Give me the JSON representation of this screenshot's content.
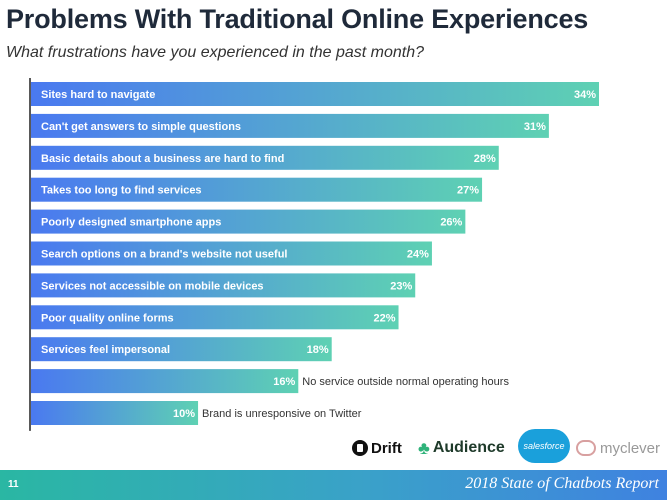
{
  "header": {
    "title": "Problems With Traditional Online Experiences",
    "subtitle": "What frustrations have you experienced in the past month?"
  },
  "colors": {
    "bar_start": "#4a79f0",
    "bar_end": "#5ed1b3",
    "label_inside": "#ffffff",
    "label_outside": "#333333",
    "axis": "#222222"
  },
  "chart_data": {
    "type": "bar",
    "orientation": "horizontal",
    "title": "Problems With Traditional Online Experiences",
    "subtitle": "What frustrations have you experienced in the past month?",
    "xlabel": "",
    "ylabel": "",
    "value_suffix": "%",
    "xlim": [
      0,
      35
    ],
    "grid": false,
    "legend": "none",
    "categories": [
      "Sites hard to navigate",
      "Can't get answers to simple questions",
      "Basic details about a business are hard to find",
      "Takes too long to find services",
      "Poorly designed smartphone apps",
      "Search options on a brand's website not useful",
      "Services not accessible on mobile devices",
      "Poor quality online forms",
      "Services feel impersonal",
      "No service outside normal operating hours",
      "Brand is unresponsive on Twitter"
    ],
    "values": [
      34,
      31,
      28,
      27,
      26,
      24,
      23,
      22,
      18,
      16,
      10
    ],
    "label_position": [
      "inside",
      "inside",
      "inside",
      "inside",
      "inside",
      "inside",
      "inside",
      "inside",
      "inside",
      "outside",
      "outside"
    ]
  },
  "logos": {
    "drift": "Drift",
    "audience": "Audience",
    "salesforce": "salesforce",
    "myclever": "myclever",
    "drift_icon": "drift-logo-icon",
    "audience_icon": "audience-logo-icon",
    "myclever_icon": "myclever-logo-icon"
  },
  "footer": {
    "page_number": "11",
    "report_title": "2018 State of Chatbots Report"
  }
}
